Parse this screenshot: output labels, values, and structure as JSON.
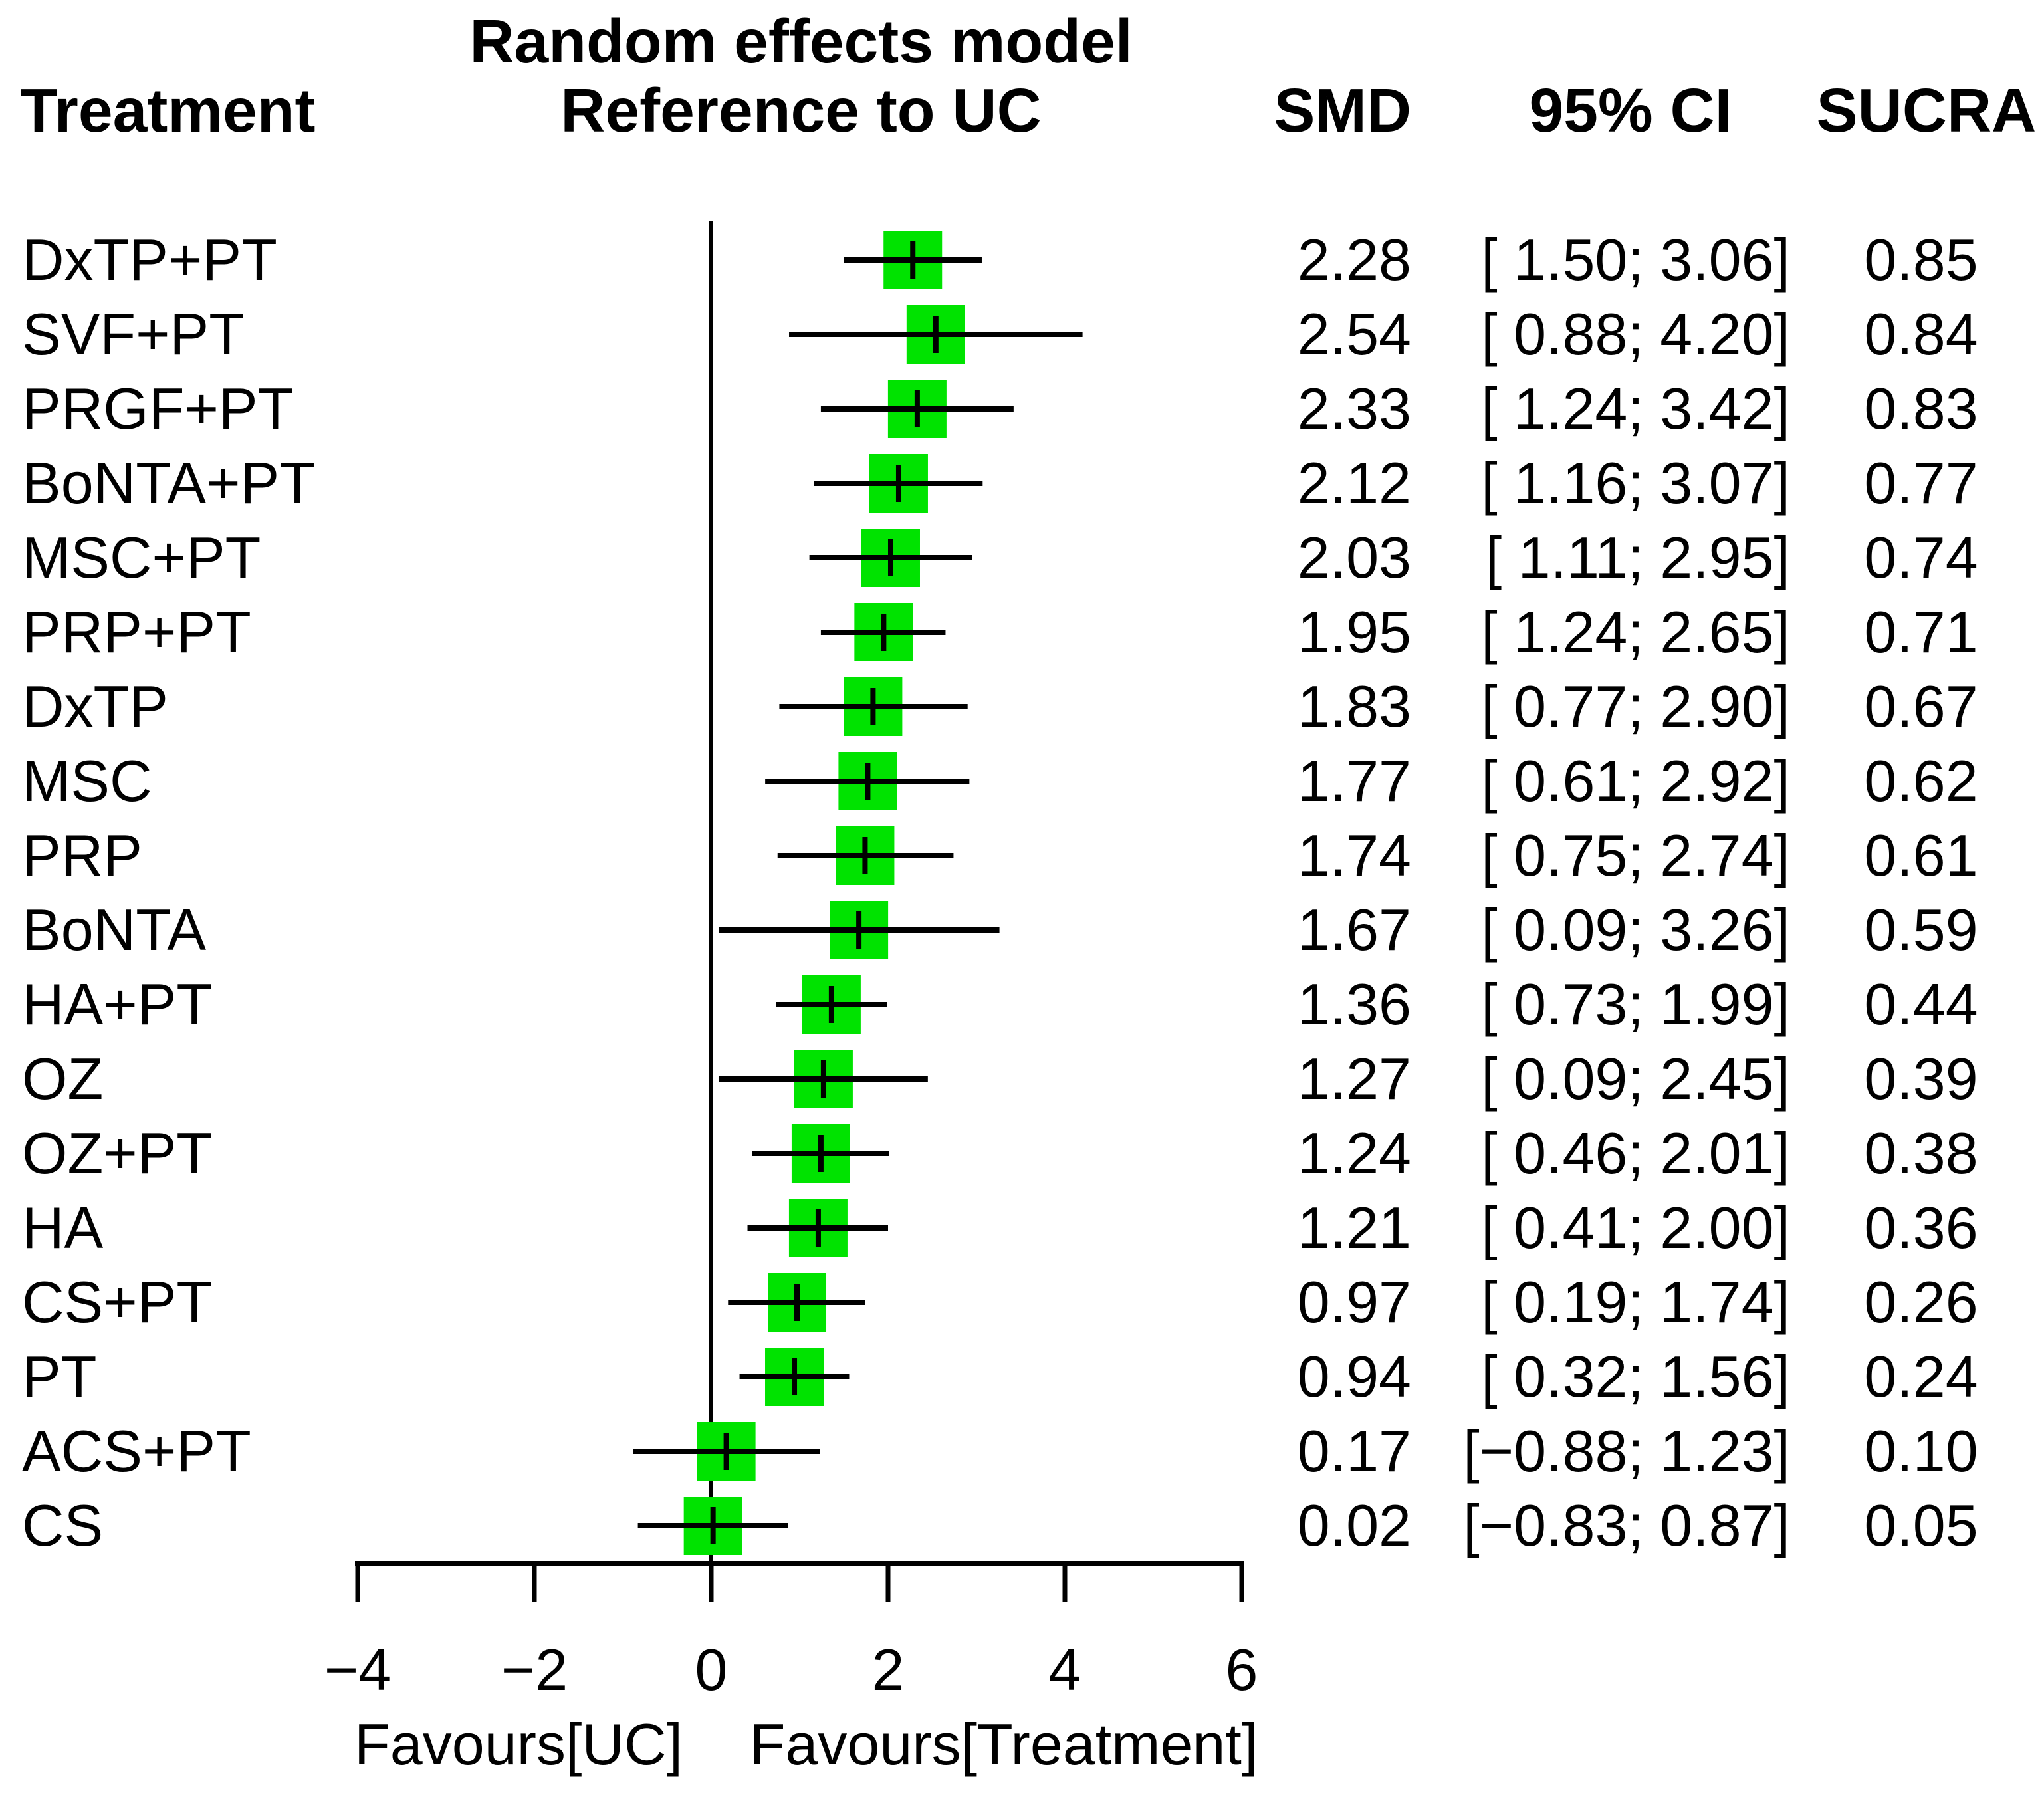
{
  "header": {
    "title_line1": "Random effects model",
    "title_line2": "Reference to UC",
    "treatment_label": "Treatment",
    "smd_label": "SMD",
    "ci_label": "95% CI",
    "sucra_label": "SUCRA"
  },
  "chart_data": {
    "type": "forest",
    "title": "Random effects model",
    "subtitle": "Reference to UC",
    "reference_value": 0,
    "xlim": [
      -4,
      6
    ],
    "x_ticks": [
      -4,
      -2,
      0,
      2,
      4,
      6
    ],
    "x_tick_labels": [
      "−4",
      "−2",
      "0",
      "2",
      "4",
      "6"
    ],
    "xlabel_left": "Favours[UC]",
    "xlabel_right": "Favours[Treatment]",
    "marker_color": "#00E300",
    "line_color": "#000000",
    "rows": [
      {
        "treatment": "DxTP+PT",
        "smd": 2.28,
        "lo": 1.5,
        "hi": 3.06,
        "sucra": 0.85,
        "smd_text": "2.28",
        "ci_text": "[ 1.50; 3.06]",
        "sucra_text": "0.85"
      },
      {
        "treatment": "SVF+PT",
        "smd": 2.54,
        "lo": 0.88,
        "hi": 4.2,
        "sucra": 0.84,
        "smd_text": "2.54",
        "ci_text": "[ 0.88; 4.20]",
        "sucra_text": "0.84"
      },
      {
        "treatment": "PRGF+PT",
        "smd": 2.33,
        "lo": 1.24,
        "hi": 3.42,
        "sucra": 0.83,
        "smd_text": "2.33",
        "ci_text": "[ 1.24; 3.42]",
        "sucra_text": "0.83"
      },
      {
        "treatment": "BoNTA+PT",
        "smd": 2.12,
        "lo": 1.16,
        "hi": 3.07,
        "sucra": 0.77,
        "smd_text": "2.12",
        "ci_text": "[ 1.16; 3.07]",
        "sucra_text": "0.77"
      },
      {
        "treatment": "MSC+PT",
        "smd": 2.03,
        "lo": 1.11,
        "hi": 2.95,
        "sucra": 0.74,
        "smd_text": "2.03",
        "ci_text": "[ 1.11; 2.95]",
        "sucra_text": "0.74"
      },
      {
        "treatment": "PRP+PT",
        "smd": 1.95,
        "lo": 1.24,
        "hi": 2.65,
        "sucra": 0.71,
        "smd_text": "1.95",
        "ci_text": "[ 1.24; 2.65]",
        "sucra_text": "0.71"
      },
      {
        "treatment": "DxTP",
        "smd": 1.83,
        "lo": 0.77,
        "hi": 2.9,
        "sucra": 0.67,
        "smd_text": "1.83",
        "ci_text": "[ 0.77; 2.90]",
        "sucra_text": "0.67"
      },
      {
        "treatment": "MSC",
        "smd": 1.77,
        "lo": 0.61,
        "hi": 2.92,
        "sucra": 0.62,
        "smd_text": "1.77",
        "ci_text": "[ 0.61; 2.92]",
        "sucra_text": "0.62"
      },
      {
        "treatment": "PRP",
        "smd": 1.74,
        "lo": 0.75,
        "hi": 2.74,
        "sucra": 0.61,
        "smd_text": "1.74",
        "ci_text": "[ 0.75; 2.74]",
        "sucra_text": "0.61"
      },
      {
        "treatment": "BoNTA",
        "smd": 1.67,
        "lo": 0.09,
        "hi": 3.26,
        "sucra": 0.59,
        "smd_text": "1.67",
        "ci_text": "[ 0.09; 3.26]",
        "sucra_text": "0.59"
      },
      {
        "treatment": "HA+PT",
        "smd": 1.36,
        "lo": 0.73,
        "hi": 1.99,
        "sucra": 0.44,
        "smd_text": "1.36",
        "ci_text": "[ 0.73; 1.99]",
        "sucra_text": "0.44"
      },
      {
        "treatment": "OZ",
        "smd": 1.27,
        "lo": 0.09,
        "hi": 2.45,
        "sucra": 0.39,
        "smd_text": "1.27",
        "ci_text": "[ 0.09; 2.45]",
        "sucra_text": "0.39"
      },
      {
        "treatment": "OZ+PT",
        "smd": 1.24,
        "lo": 0.46,
        "hi": 2.01,
        "sucra": 0.38,
        "smd_text": "1.24",
        "ci_text": "[ 0.46; 2.01]",
        "sucra_text": "0.38"
      },
      {
        "treatment": "HA",
        "smd": 1.21,
        "lo": 0.41,
        "hi": 2.0,
        "sucra": 0.36,
        "smd_text": "1.21",
        "ci_text": "[ 0.41; 2.00]",
        "sucra_text": "0.36"
      },
      {
        "treatment": "CS+PT",
        "smd": 0.97,
        "lo": 0.19,
        "hi": 1.74,
        "sucra": 0.26,
        "smd_text": "0.97",
        "ci_text": "[ 0.19; 1.74]",
        "sucra_text": "0.26"
      },
      {
        "treatment": "PT",
        "smd": 0.94,
        "lo": 0.32,
        "hi": 1.56,
        "sucra": 0.24,
        "smd_text": "0.94",
        "ci_text": "[ 0.32; 1.56]",
        "sucra_text": "0.24"
      },
      {
        "treatment": "ACS+PT",
        "smd": 0.17,
        "lo": -0.88,
        "hi": 1.23,
        "sucra": 0.1,
        "smd_text": "0.17",
        "ci_text": "[−0.88; 1.23]",
        "sucra_text": "0.10"
      },
      {
        "treatment": "CS",
        "smd": 0.02,
        "lo": -0.83,
        "hi": 0.87,
        "sucra": 0.05,
        "smd_text": "0.02",
        "ci_text": "[−0.83; 0.87]",
        "sucra_text": "0.05"
      }
    ]
  }
}
